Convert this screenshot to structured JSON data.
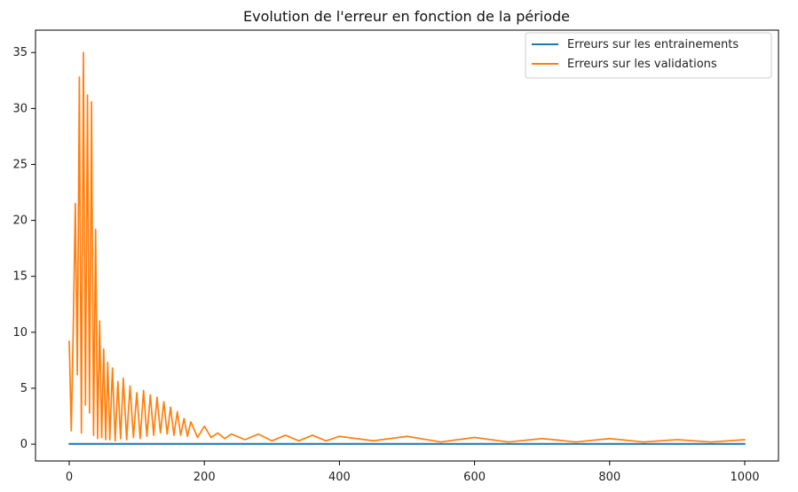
{
  "chart_data": {
    "type": "line",
    "title": "Evolution de l'erreur en fonction de la période",
    "xlabel": "",
    "ylabel": "",
    "xlim": [
      0,
      1000
    ],
    "ylim": [
      0,
      35
    ],
    "xticks": [
      0,
      200,
      400,
      600,
      800,
      1000
    ],
    "yticks": [
      0,
      5,
      10,
      15,
      20,
      25,
      30,
      35
    ],
    "grid": false,
    "legend_position": "top-right",
    "series": [
      {
        "name": "Erreurs sur les entrainements",
        "color": "#1f77b4",
        "x": [
          0,
          1000
        ],
        "y": [
          0.02,
          0.02
        ]
      },
      {
        "name": "Erreurs sur les validations",
        "color": "#ff7f0e",
        "x": [
          0,
          3,
          6,
          9,
          12,
          15,
          18,
          21,
          24,
          27,
          30,
          33,
          36,
          39,
          42,
          45,
          48,
          51,
          54,
          57,
          60,
          64,
          68,
          72,
          76,
          80,
          85,
          90,
          95,
          100,
          105,
          110,
          115,
          120,
          125,
          130,
          135,
          140,
          145,
          150,
          155,
          160,
          165,
          170,
          175,
          180,
          190,
          200,
          210,
          220,
          230,
          240,
          260,
          280,
          300,
          320,
          340,
          360,
          380,
          400,
          450,
          500,
          550,
          600,
          650,
          700,
          750,
          800,
          850,
          900,
          950,
          1000
        ],
        "y": [
          9.2,
          1.2,
          10.5,
          21.5,
          6.2,
          32.8,
          1.0,
          35.0,
          3.5,
          31.2,
          2.8,
          30.6,
          0.8,
          19.2,
          0.5,
          11.0,
          0.6,
          8.5,
          0.4,
          7.3,
          0.4,
          6.8,
          0.3,
          5.6,
          0.5,
          5.9,
          0.4,
          5.2,
          0.6,
          4.6,
          0.5,
          4.8,
          0.7,
          4.4,
          0.8,
          4.2,
          1.0,
          3.8,
          0.9,
          3.3,
          0.8,
          2.9,
          0.8,
          2.3,
          0.7,
          2.0,
          0.6,
          1.6,
          0.6,
          1.0,
          0.5,
          0.9,
          0.4,
          0.9,
          0.3,
          0.8,
          0.3,
          0.8,
          0.3,
          0.7,
          0.3,
          0.7,
          0.2,
          0.6,
          0.2,
          0.5,
          0.2,
          0.5,
          0.2,
          0.4,
          0.2,
          0.4
        ]
      }
    ]
  }
}
